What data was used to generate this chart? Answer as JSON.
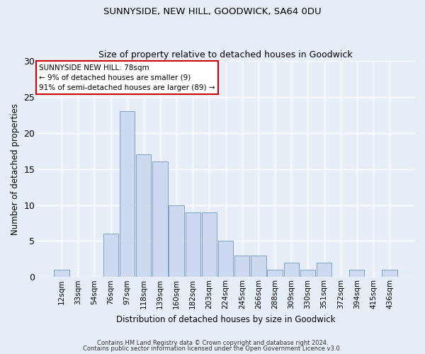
{
  "title1": "SUNNYSIDE, NEW HILL, GOODWICK, SA64 0DU",
  "title2": "Size of property relative to detached houses in Goodwick",
  "xlabel": "Distribution of detached houses by size in Goodwick",
  "ylabel": "Number of detached properties",
  "categories": [
    "12sqm",
    "33sqm",
    "54sqm",
    "76sqm",
    "97sqm",
    "118sqm",
    "139sqm",
    "160sqm",
    "182sqm",
    "203sqm",
    "224sqm",
    "245sqm",
    "266sqm",
    "288sqm",
    "309sqm",
    "330sqm",
    "351sqm",
    "372sqm",
    "394sqm",
    "415sqm",
    "436sqm"
  ],
  "values": [
    1,
    0,
    0,
    6,
    23,
    17,
    16,
    10,
    9,
    9,
    5,
    3,
    3,
    1,
    2,
    1,
    2,
    0,
    1,
    0,
    1
  ],
  "bar_color": "#ccd9ee",
  "bar_edge_color": "#7ba3ce",
  "annotation_box_text": "SUNNYSIDE NEW HILL: 78sqm\n← 9% of detached houses are smaller (9)\n91% of semi-detached houses are larger (89) →",
  "annotation_box_color": "#ffffff",
  "annotation_box_edge_color": "#cc0000",
  "bg_color": "#e8eef8",
  "grid_color": "#ffffff",
  "ylim": [
    0,
    30
  ],
  "yticks": [
    0,
    5,
    10,
    15,
    20,
    25,
    30
  ],
  "footer1": "Contains HM Land Registry data © Crown copyright and database right 2024.",
  "footer2": "Contains public sector information licensed under the Open Government Licence v3.0."
}
